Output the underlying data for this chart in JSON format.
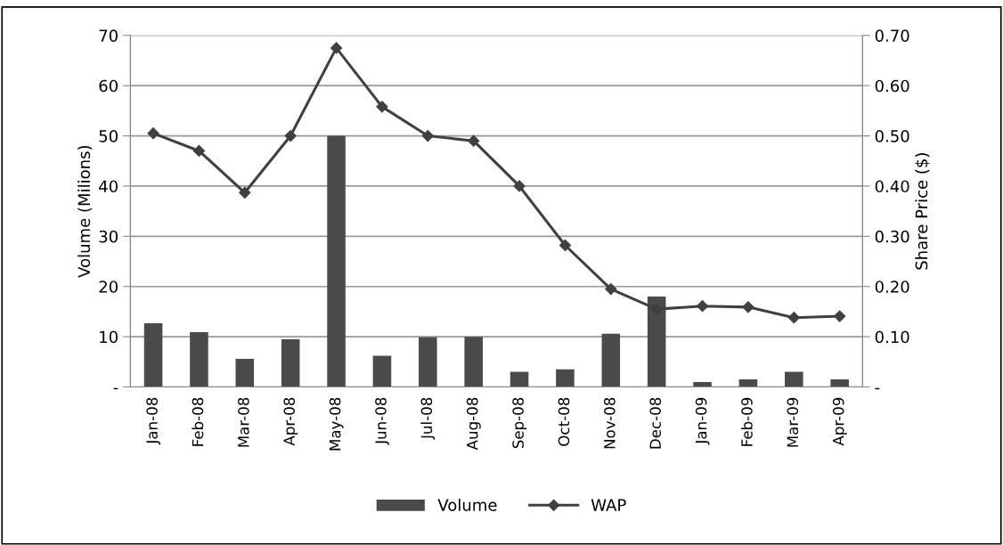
{
  "chart_data": {
    "type": "bar",
    "categories": [
      "Jan-08",
      "Feb-08",
      "Mar-08",
      "Apr-08",
      "May-08",
      "Jun-08",
      "Jul-08",
      "Aug-08",
      "Sep-08",
      "Oct-08",
      "Nov-08",
      "Dec-08",
      "Jan-09",
      "Feb-09",
      "Mar-09",
      "Apr-09"
    ],
    "series": [
      {
        "name": "Volume",
        "color": "#4a4a4a",
        "values": [
          12.7,
          10.9,
          5.6,
          9.5,
          50,
          6.2,
          9.9,
          10,
          3.0,
          3.5,
          10.6,
          18.0,
          1.0,
          1.5,
          3.0,
          1.5
        ]
      },
      {
        "name": "WAP",
        "type": "line",
        "axis": "y2",
        "color": "#404040",
        "marker": "diamond",
        "values": [
          0.505,
          0.47,
          0.387,
          0.5,
          0.675,
          0.558,
          0.5,
          0.49,
          0.4,
          0.282,
          0.195,
          0.155,
          0.161,
          0.159,
          0.138,
          0.141
        ]
      }
    ],
    "ylabel": "Volume (Milions)",
    "y2label": "Share Price ($)",
    "ylim": [
      0,
      70
    ],
    "yticks": [
      {
        "value": 0,
        "label": "-"
      },
      10,
      20,
      30,
      40,
      50,
      60,
      70
    ],
    "y2lim": [
      0,
      0.7
    ],
    "y2ticks": [
      {
        "value": 0,
        "label": "-"
      },
      {
        "value": 0.1,
        "label": "0.10"
      },
      {
        "value": 0.2,
        "label": "0.20"
      },
      {
        "value": 0.3,
        "label": "0.30"
      },
      {
        "value": 0.4,
        "label": "0.40"
      },
      {
        "value": 0.5,
        "label": "0.50"
      },
      {
        "value": 0.6,
        "label": "0.60"
      },
      {
        "value": 0.7,
        "label": "0.70"
      }
    ],
    "grid": "y",
    "legend": "bottom"
  }
}
